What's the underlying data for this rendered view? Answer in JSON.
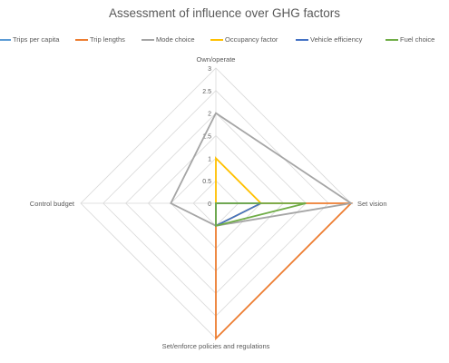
{
  "chart_data": {
    "type": "radar",
    "title": "Assessment of influence over GHG factors",
    "axes": [
      "Own/operate",
      "Set vision",
      "Set/enforce policies and regulations",
      "Control budget"
    ],
    "rlim": [
      0,
      3
    ],
    "ticks": [
      "0",
      "0.5",
      "1",
      "1.5",
      "2",
      "2.5",
      "3"
    ],
    "grid": true,
    "legend_position": "top",
    "series": [
      {
        "name": "Trips per capita",
        "color": "#5b9bd5",
        "values": [
          0,
          0,
          0,
          0
        ]
      },
      {
        "name": "Trip lengths",
        "color": "#ed7d31",
        "values": [
          0,
          3,
          3,
          0
        ]
      },
      {
        "name": "Mode choice",
        "color": "#a5a5a5",
        "values": [
          2,
          3,
          0.5,
          1
        ]
      },
      {
        "name": "Occupancy factor",
        "color": "#ffc000",
        "values": [
          1,
          1,
          0.5,
          0
        ]
      },
      {
        "name": "Vehicle efficiency",
        "color": "#4472c4",
        "values": [
          0,
          1,
          0.5,
          0
        ]
      },
      {
        "name": "Fuel choice",
        "color": "#70ad47",
        "values": [
          0,
          2,
          0.5,
          0
        ]
      }
    ]
  }
}
